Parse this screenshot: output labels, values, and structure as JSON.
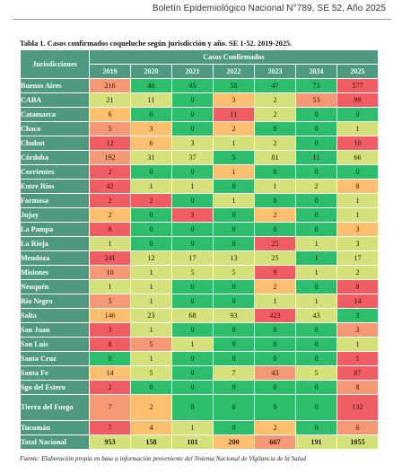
{
  "header": {
    "title": "Boletín Epidemiológico Nacional N°789, SE 52, Año 2025"
  },
  "table": {
    "caption": "Tabla 1. Casos confirmados coqueluche según jurisdicción y año. SE 1-52. 2019-2025.",
    "row_header": "Jurisdicciones",
    "group_header": "Casos Confirmados",
    "years": [
      "2019",
      "2020",
      "2021",
      "2022",
      "2023",
      "2024",
      "2025"
    ],
    "rows": [
      {
        "name": "Buenos Aires",
        "values": [
          "216",
          "48",
          "45",
          "58",
          "47",
          "73",
          "577"
        ]
      },
      {
        "name": "CABA",
        "values": [
          "21",
          "11",
          "0",
          "3",
          "2",
          "53",
          "99"
        ]
      },
      {
        "name": "Catamarca",
        "values": [
          "6",
          "0",
          "0",
          "11",
          "2",
          "0",
          "0"
        ]
      },
      {
        "name": "Chaco",
        "values": [
          "5",
          "3",
          "0",
          "2",
          "0",
          "0",
          "1"
        ]
      },
      {
        "name": "Chubut",
        "values": [
          "12",
          "6",
          "3",
          "1",
          "2",
          "0",
          "10"
        ]
      },
      {
        "name": "Córdoba",
        "values": [
          "192",
          "31",
          "37",
          "5",
          "81",
          "11",
          "66"
        ]
      },
      {
        "name": "Corrientes",
        "values": [
          "2",
          "0",
          "0",
          "1",
          "0",
          "0",
          "0"
        ]
      },
      {
        "name": "Entre Ríos",
        "values": [
          "42",
          "1",
          "1",
          "0",
          "1",
          "2",
          "8"
        ]
      },
      {
        "name": "Formosa",
        "values": [
          "2",
          "2",
          "0",
          "1",
          "0",
          "0",
          "1"
        ]
      },
      {
        "name": "Jujuy",
        "values": [
          "2",
          "0",
          "3",
          "0",
          "2",
          "0",
          "1"
        ]
      },
      {
        "name": "La Pampa",
        "values": [
          "8",
          "0",
          "0",
          "0",
          "0",
          "0",
          "3"
        ]
      },
      {
        "name": "La Rioja",
        "values": [
          "1",
          "0",
          "0",
          "0",
          "25",
          "1",
          "3"
        ]
      },
      {
        "name": "Mendoza",
        "values": [
          "241",
          "12",
          "17",
          "13",
          "25",
          "1",
          "17"
        ]
      },
      {
        "name": "Misiones",
        "values": [
          "10",
          "1",
          "5",
          "5",
          "9",
          "1",
          "2"
        ]
      },
      {
        "name": "Neuquén",
        "values": [
          "1",
          "1",
          "0",
          "0",
          "2",
          "0",
          "8"
        ]
      },
      {
        "name": "Río Negro",
        "values": [
          "5",
          "1",
          "0",
          "0",
          "1",
          "1",
          "14"
        ]
      },
      {
        "name": "Salta",
        "values": [
          "146",
          "23",
          "68",
          "93",
          "423",
          "43",
          "3"
        ]
      },
      {
        "name": "San Juan",
        "values": [
          "3",
          "1",
          "0",
          "0",
          "0",
          "0",
          "3"
        ]
      },
      {
        "name": "San Luis",
        "values": [
          "8",
          "5",
          "1",
          "0",
          "0",
          "0",
          "1"
        ]
      },
      {
        "name": "Santa Cruz",
        "values": [
          "0",
          "1",
          "0",
          "0",
          "0",
          "0",
          "5"
        ]
      },
      {
        "name": "Santa Fe",
        "values": [
          "14",
          "5",
          "0",
          "7",
          "43",
          "5",
          "87"
        ]
      },
      {
        "name": "Sgo del Estero",
        "values": [
          "2",
          "0",
          "0",
          "0",
          "0",
          "0",
          "8"
        ]
      },
      {
        "name": "Tierra del Fuego",
        "values": [
          "7",
          "2",
          "0",
          "0",
          "0",
          "0",
          "132"
        ]
      },
      {
        "name": "Tucumán",
        "values": [
          "7",
          "4",
          "1",
          "0",
          "2",
          "0",
          "6"
        ]
      }
    ],
    "total": {
      "name": "Total Nacional",
      "values": [
        "953",
        "158",
        "181",
        "200",
        "667",
        "191",
        "1055"
      ]
    },
    "cell_levels": [
      [
        3,
        0,
        0,
        0,
        0,
        0,
        4
      ],
      [
        1,
        1,
        0,
        2,
        1,
        3,
        4
      ],
      [
        2,
        0,
        0,
        4,
        1,
        0,
        0
      ],
      [
        3,
        2,
        0,
        2,
        0,
        0,
        1
      ],
      [
        4,
        2,
        1,
        1,
        1,
        0,
        4
      ],
      [
        3,
        1,
        1,
        0,
        1,
        0,
        1
      ],
      [
        4,
        0,
        0,
        2,
        0,
        0,
        0
      ],
      [
        4,
        1,
        1,
        0,
        1,
        1,
        2
      ],
      [
        4,
        4,
        0,
        1,
        0,
        0,
        1
      ],
      [
        2,
        0,
        4,
        0,
        2,
        0,
        1
      ],
      [
        4,
        0,
        0,
        0,
        0,
        0,
        2
      ],
      [
        1,
        0,
        0,
        0,
        4,
        1,
        1
      ],
      [
        4,
        1,
        1,
        1,
        1,
        0,
        1
      ],
      [
        3,
        1,
        1,
        1,
        4,
        1,
        1
      ],
      [
        1,
        1,
        0,
        0,
        2,
        0,
        4
      ],
      [
        3,
        1,
        0,
        0,
        1,
        1,
        4
      ],
      [
        2,
        1,
        1,
        1,
        4,
        1,
        0
      ],
      [
        4,
        1,
        0,
        0,
        0,
        0,
        3
      ],
      [
        4,
        3,
        1,
        0,
        0,
        0,
        1
      ],
      [
        0,
        1,
        0,
        0,
        0,
        0,
        4
      ],
      [
        2,
        1,
        0,
        1,
        3,
        1,
        4
      ],
      [
        4,
        0,
        0,
        0,
        0,
        0,
        3
      ],
      [
        3,
        2,
        0,
        0,
        0,
        0,
        4
      ],
      [
        4,
        2,
        1,
        0,
        2,
        0,
        3
      ]
    ],
    "total_levels": [
      1,
      1,
      1,
      2,
      3,
      1,
      1
    ],
    "palette": {
      "header_green": "#4f9a7e",
      "level_0": "#2ebc6d",
      "level_1": "#d5e27b",
      "level_2": "#fec070",
      "level_3": "#f59875",
      "level_4": "#f05d63"
    }
  },
  "source": "Fuente: Elaboración propia en base a información proveniente del Sistema Nacional de Vigilancia de la Salud"
}
